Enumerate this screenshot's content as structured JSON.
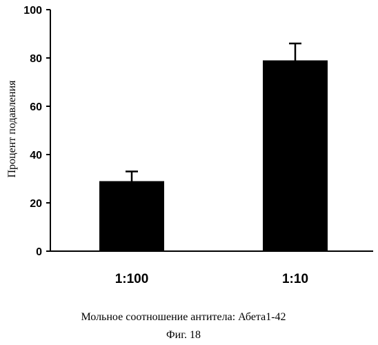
{
  "chart_data": {
    "type": "bar",
    "categories": [
      "1:100",
      "1:10"
    ],
    "values": [
      29,
      79
    ],
    "errors": [
      4,
      7
    ],
    "ylim": [
      0,
      100
    ],
    "yticks": [
      0,
      20,
      40,
      60,
      80,
      100
    ],
    "ylabel": "Процент подавления",
    "xlabel": "Мольное соотношение антитела: Абета1-42",
    "caption": "Фиг. 18",
    "grid": false,
    "bar_color": "#000000"
  }
}
